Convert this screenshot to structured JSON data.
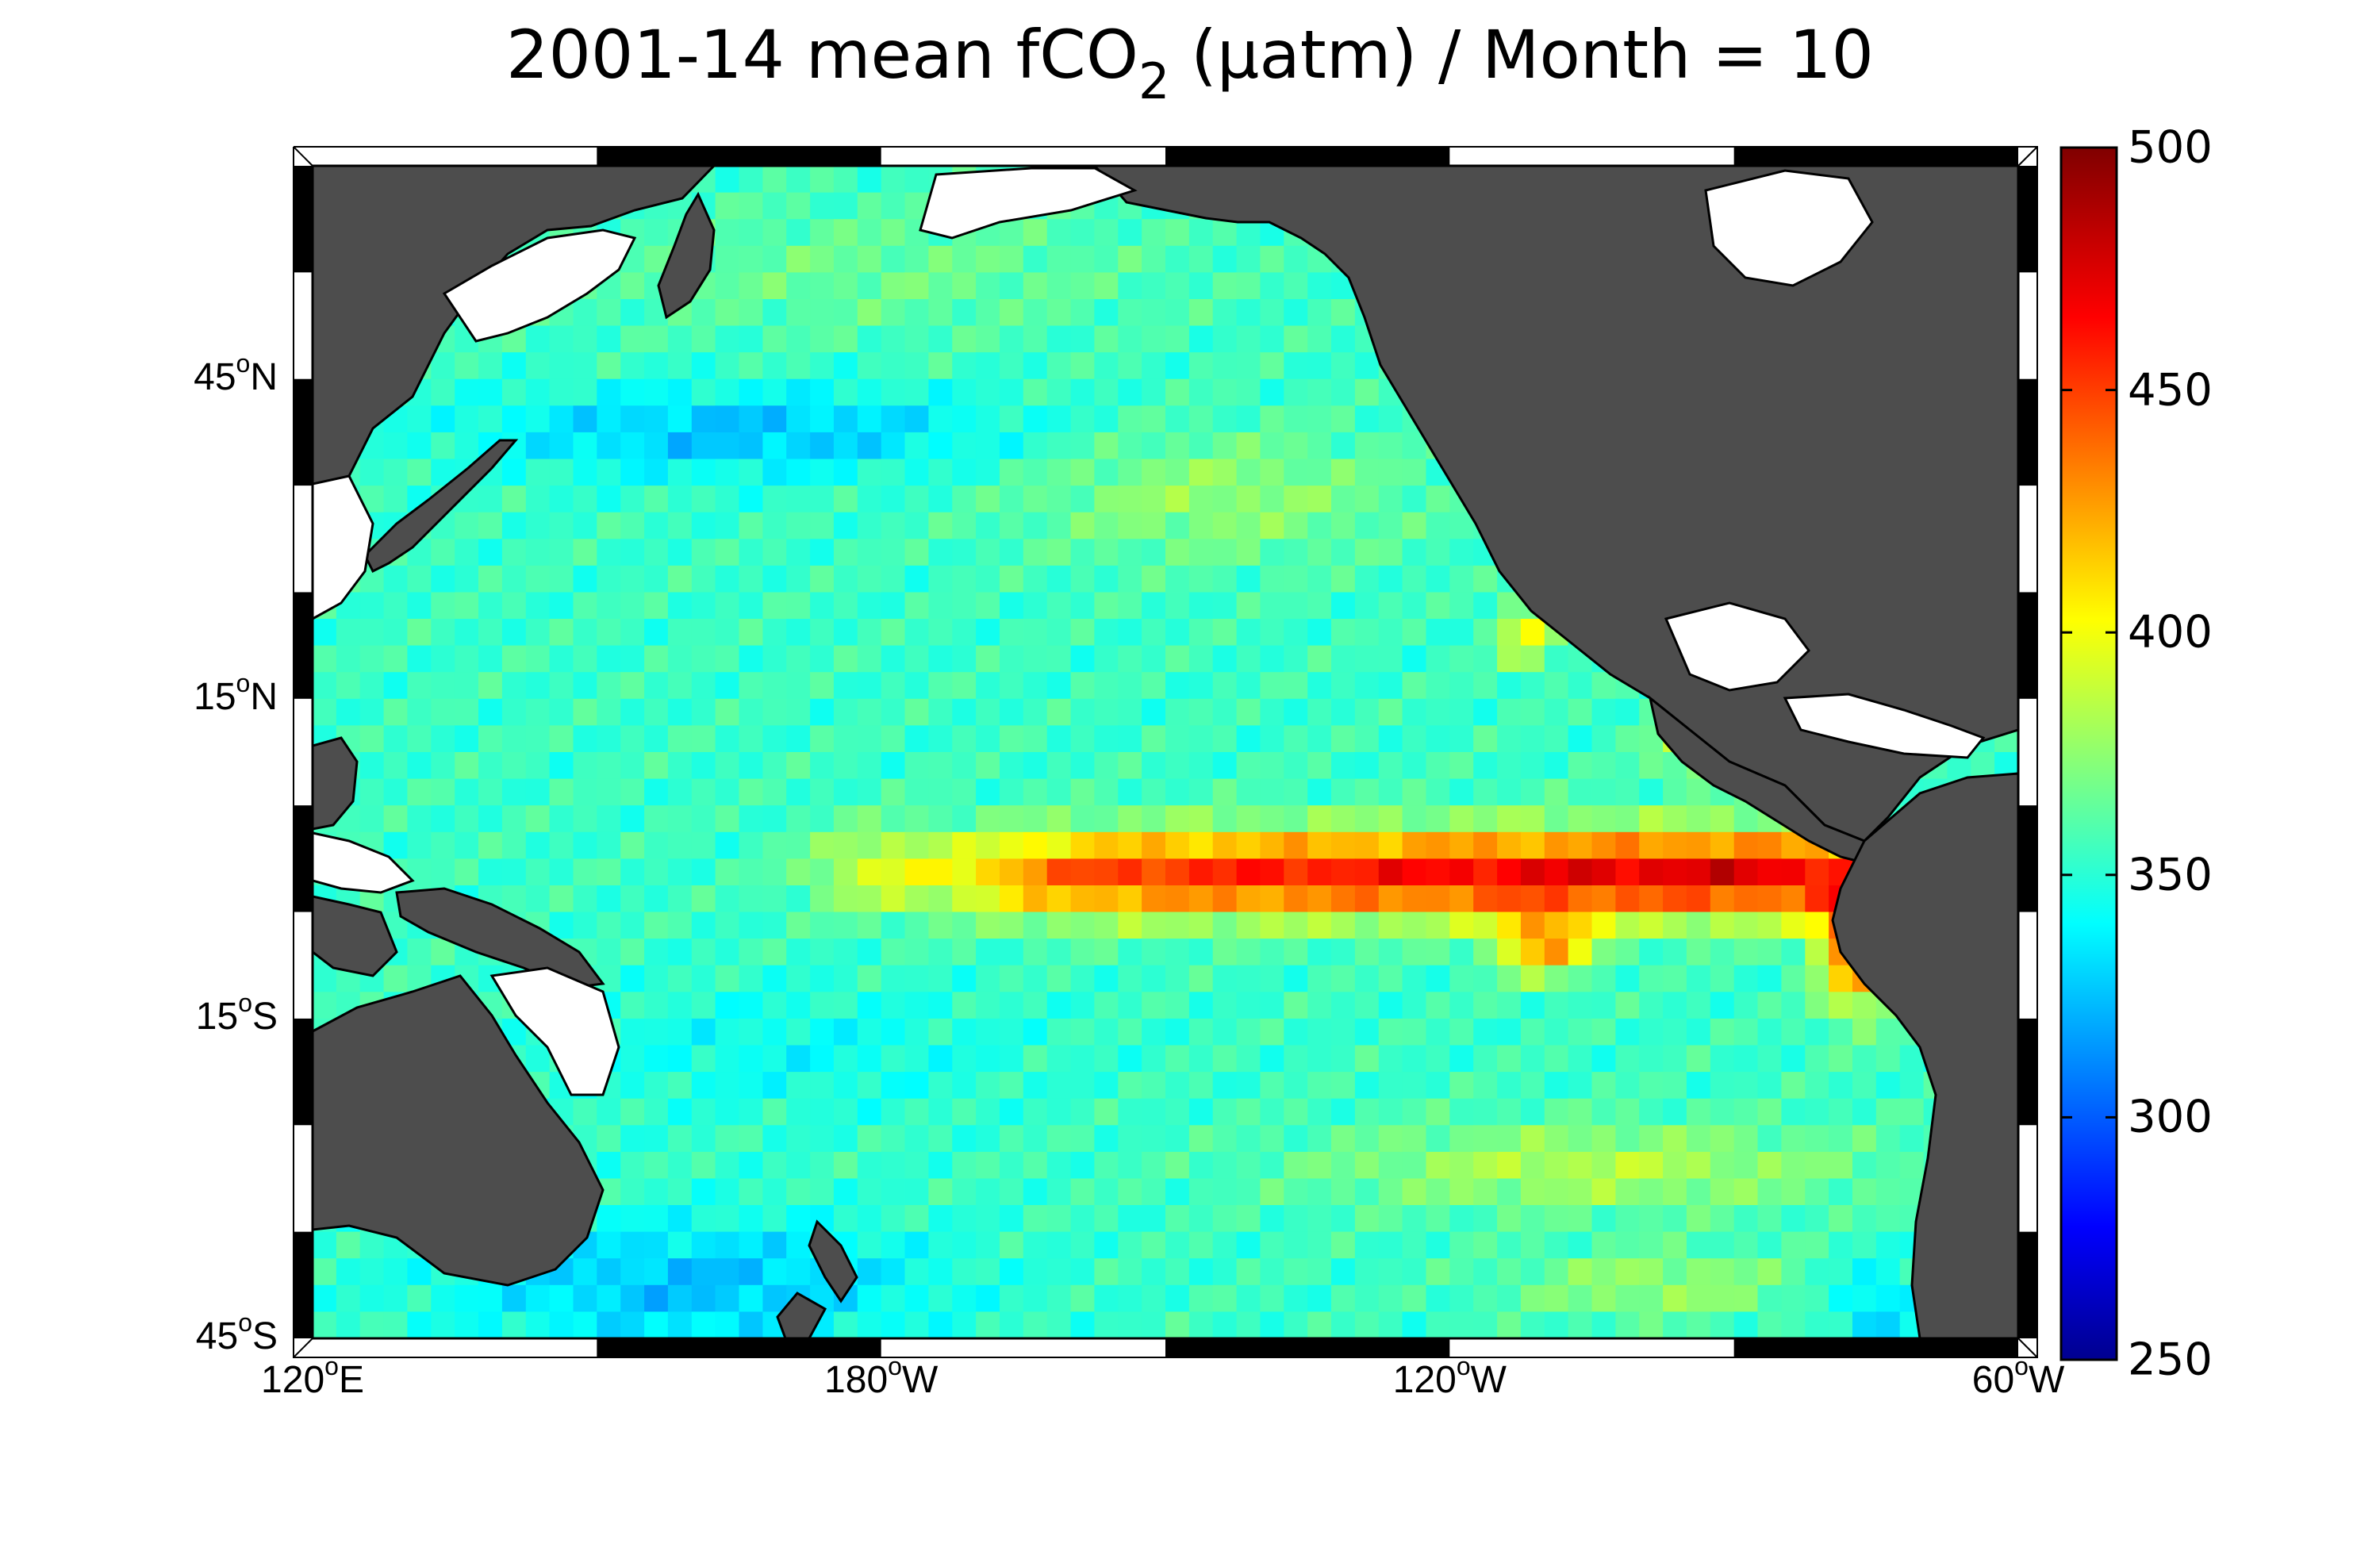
{
  "title": {
    "prefix": "2001-14 mean fCO",
    "subscript": "2",
    "suffix": " (μatm) / Month = 10"
  },
  "map": {
    "projection": "equirectangular",
    "lon_range": [
      120,
      300
    ],
    "lat_range": [
      -45,
      65
    ],
    "land_color": "#4d4d4d",
    "missing_color": "#ffffff",
    "lat_ticks": [
      {
        "deg": "45",
        "sup": "o",
        "hemi": "N",
        "value": 45
      },
      {
        "deg": "15",
        "sup": "o",
        "hemi": "N",
        "value": 15
      },
      {
        "deg": "15",
        "sup": "o",
        "hemi": "S",
        "value": -15
      },
      {
        "deg": "45",
        "sup": "o",
        "hemi": "S",
        "value": -45
      }
    ],
    "lon_ticks": [
      {
        "deg": "120",
        "sup": "o",
        "hemi": "E",
        "value": 120
      },
      {
        "deg": "180",
        "sup": "o",
        "hemi": "W",
        "value": 180
      },
      {
        "deg": "120",
        "sup": "o",
        "hemi": "W",
        "value": 240
      },
      {
        "deg": "60",
        "sup": "o",
        "hemi": "W",
        "value": 300
      }
    ]
  },
  "colorbar": {
    "colormap": "jet",
    "range": [
      250,
      500
    ],
    "ticks": [
      "500",
      "450",
      "400",
      "350",
      "300",
      "250"
    ],
    "tick_values": [
      500,
      450,
      400,
      350,
      300,
      250
    ]
  },
  "chart_data": {
    "type": "heatmap",
    "title": "2001-14 mean fCO2 (μatm) / Month = 10",
    "units": "μatm",
    "value_range": [
      250,
      500
    ],
    "features": [
      {
        "name": "equatorial Pacific maximum",
        "lon_range": [
          185,
          280
        ],
        "lat_range": [
          -8,
          4
        ],
        "approx_value": 470
      },
      {
        "name": "peak off South America",
        "lon_range": [
          255,
          270
        ],
        "lat_range": [
          -6,
          -1
        ],
        "approx_value": 495
      },
      {
        "name": "Peru coastal upwelling",
        "lon_range": [
          280,
          288
        ],
        "lat_range": [
          -15,
          -2
        ],
        "approx_value": 455
      },
      {
        "name": "Central American coast",
        "lon_range": [
          262,
          275
        ],
        "lat_range": [
          8,
          15
        ],
        "approx_value": 400
      },
      {
        "name": "Baja California coast",
        "lon_range": [
          245,
          252
        ],
        "lat_range": [
          18,
          25
        ],
        "approx_value": 410
      },
      {
        "name": "North Pacific low band",
        "lon_range": [
          140,
          195
        ],
        "lat_range": [
          37,
          43
        ],
        "approx_value": 320
      },
      {
        "name": "Southern Ocean low",
        "lon_range": [
          150,
          185
        ],
        "lat_range": [
          -45,
          -35
        ],
        "approx_value": 325
      },
      {
        "name": "Subtropical South Pacific band",
        "lon_range": [
          230,
          275
        ],
        "lat_range": [
          -35,
          -25
        ],
        "approx_value": 395
      },
      {
        "name": "Gyre background",
        "lon_range": [
          130,
          280
        ],
        "lat_range": [
          -30,
          30
        ],
        "approx_value": 360
      }
    ]
  }
}
